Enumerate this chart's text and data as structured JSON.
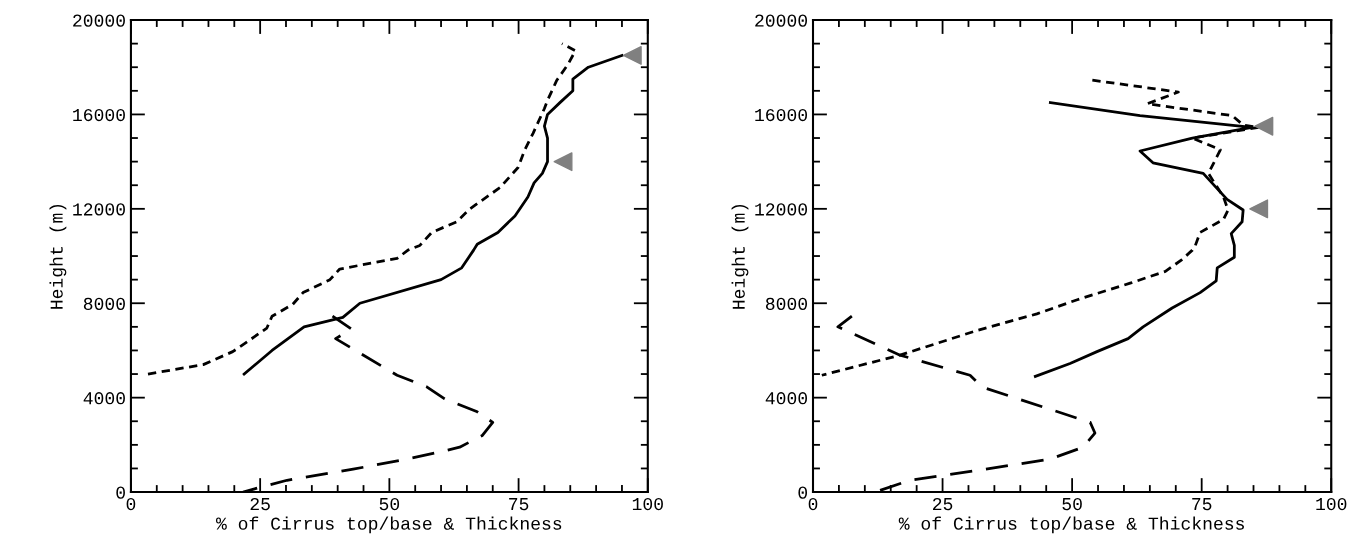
{
  "chart_data": [
    {
      "type": "line",
      "xlabel": "% of Cirrus top/base & Thickness",
      "ylabel": "Height (m)",
      "xlim": [
        0,
        100
      ],
      "ylim": [
        0,
        20000
      ],
      "xticks": [
        0,
        25,
        50,
        75,
        100
      ],
      "yticks": [
        0,
        4000,
        8000,
        12000,
        16000,
        20000
      ],
      "grid": false,
      "legend": false,
      "series": [
        {
          "color": "#000000",
          "line_style": "solid",
          "x": [
            21.9,
            27.3,
            33.5,
            41,
            44.3,
            60,
            64,
            66.3,
            67,
            71,
            74.3,
            76.8,
            78,
            79.6,
            80.6,
            80.6,
            80,
            80.6,
            83,
            85.5,
            85.5,
            88.5,
            95
          ],
          "values": [
            5000,
            6000,
            7000,
            7400,
            8000,
            9000,
            9500,
            10250,
            10500,
            11000,
            11700,
            12500,
            13100,
            13500,
            14000,
            15000,
            15500,
            16000,
            16500,
            17000,
            17500,
            18000,
            18500
          ]
        },
        {
          "color": "#000000",
          "line_style": "dotted",
          "x": [
            3.3,
            14,
            19.7,
            22.4,
            26.3,
            27.3,
            31.3,
            33.3,
            38.5,
            40.4,
            51.5,
            53.6,
            55.9,
            58.2,
            63,
            65.6,
            71.4,
            74.9,
            76.2,
            77.8,
            80,
            80.6,
            82.4,
            84.5,
            86,
            83.4
          ],
          "values": [
            5000,
            5400,
            5950,
            6350,
            6950,
            7450,
            7950,
            8450,
            9000,
            9450,
            9900,
            10250,
            10450,
            11000,
            11450,
            12000,
            12900,
            13750,
            14500,
            15200,
            16250,
            16600,
            17450,
            18100,
            18700,
            19000
          ]
        },
        {
          "color": "#000000",
          "line_style": "dashed",
          "x": [
            39,
            42.7,
            39.6,
            51.5,
            57.3,
            60.7,
            67,
            70,
            68,
            63.6,
            59.8,
            53.4,
            43,
            30.2,
            25,
            21.7
          ],
          "values": [
            7450,
            6900,
            6500,
            4950,
            4450,
            3950,
            3400,
            2950,
            2400,
            1900,
            1700,
            1400,
            970,
            500,
            200,
            0
          ]
        },
        {
          "type": "scatter",
          "marker": "triangle",
          "color": "#808080",
          "x": [
            97,
            83.6
          ],
          "values": [
            18500,
            14000
          ]
        }
      ]
    },
    {
      "type": "line",
      "xlabel": "% of Cirrus top/base & Thickness",
      "ylabel": "Height (m)",
      "xlim": [
        0,
        100
      ],
      "ylim": [
        0,
        20000
      ],
      "xticks": [
        0,
        25,
        50,
        75,
        100
      ],
      "yticks": [
        0,
        4000,
        8000,
        12000,
        16000,
        20000
      ],
      "grid": false,
      "legend": false,
      "series": [
        {
          "color": "#000000",
          "line_style": "solid",
          "x": [
            45.8,
            63.1,
            84.7,
            73.2,
            63.1,
            65.6,
            75.3,
            79.9,
            83,
            82.8,
            80.7,
            81.3,
            81.3,
            78,
            77.8,
            74.7,
            69.3,
            63.7,
            60.8,
            54.8,
            49.6,
            42.9
          ],
          "values": [
            16500,
            15950,
            15450,
            15000,
            14450,
            13950,
            13500,
            12400,
            11950,
            11450,
            10950,
            10450,
            9950,
            9500,
            8950,
            8450,
            7800,
            7000,
            6500,
            5950,
            5450,
            4900
          ]
        },
        {
          "color": "#000000",
          "line_style": "dotted",
          "x": [
            53.9,
            70.5,
            64.5,
            80.9,
            83,
            86,
            73.2,
            78.6,
            76.3,
            79.2,
            80.1,
            79.2,
            74.7,
            73.7,
            73.2,
            71.2,
            68,
            61.2,
            51,
            43.2,
            31.7,
            16.8,
            1.7
          ],
          "values": [
            17450,
            16950,
            16450,
            15950,
            15550,
            15450,
            15000,
            14500,
            13500,
            12500,
            11950,
            11550,
            11000,
            10400,
            10250,
            9850,
            9350,
            8850,
            8150,
            7550,
            6850,
            5800,
            4950
          ]
        },
        {
          "color": "#000000",
          "line_style": "dashed",
          "x": [
            7.5,
            4.8,
            16.8,
            30.3,
            32.6,
            53.5,
            54.4,
            52.1,
            45.8,
            32.8,
            18.7,
            12
          ],
          "values": [
            7450,
            7000,
            5800,
            4950,
            4450,
            2950,
            2500,
            1900,
            1400,
            950,
            500,
            0
          ]
        },
        {
          "type": "scatter",
          "marker": "triangle",
          "color": "#808080",
          "x": [
            87,
            86
          ],
          "values": [
            15500,
            12000
          ]
        }
      ]
    }
  ]
}
